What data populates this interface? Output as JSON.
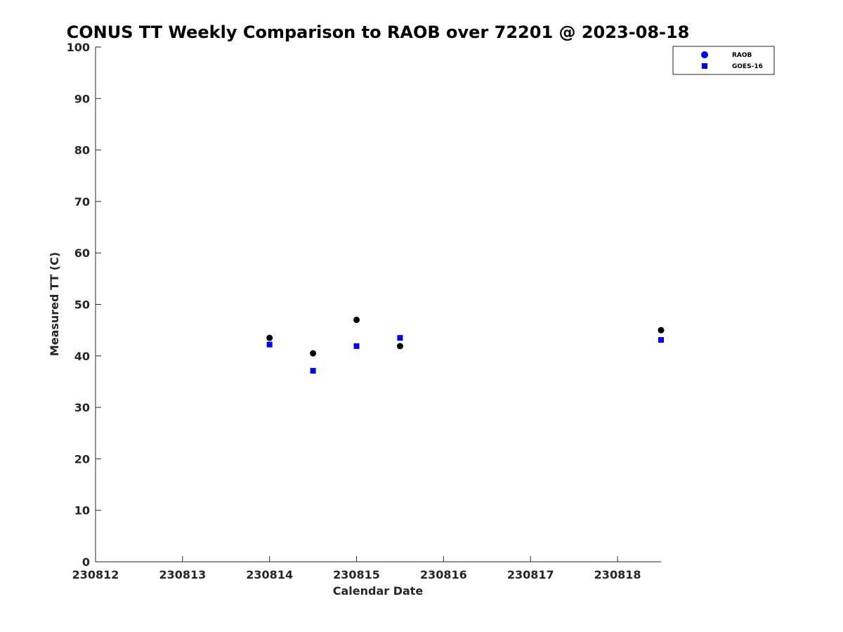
{
  "chart_data": {
    "type": "scatter",
    "title": "CONUS TT Weekly Comparison to RAOB over 72201 @ 2023-08-18",
    "xlabel": "Calendar Date",
    "ylabel": "Measured TT (C)",
    "xlim": [
      0,
      6.5
    ],
    "ylim": [
      0,
      100
    ],
    "x_ticks": [
      0,
      1,
      2,
      3,
      4,
      5,
      6
    ],
    "x_tick_labels": [
      "230812",
      "230813",
      "230814",
      "230815",
      "230816",
      "230817",
      "230818"
    ],
    "y_ticks": [
      0,
      10,
      20,
      30,
      40,
      50,
      60,
      70,
      80,
      90,
      100
    ],
    "y_tick_labels": [
      "0",
      "10",
      "20",
      "30",
      "40",
      "50",
      "60",
      "70",
      "80",
      "90",
      "100"
    ],
    "x_axis_note": "x values are days after 230812",
    "grid": false,
    "legend_position": "top-right",
    "series": [
      {
        "name": "RAOB",
        "marker": "circle",
        "legend_color": "#0000ff",
        "plot_color": "#000000",
        "x": [
          2.0,
          2.5,
          3.0,
          3.5,
          6.5
        ],
        "y": [
          43.5,
          40.5,
          47.0,
          41.9,
          45.0
        ]
      },
      {
        "name": "GOES-16",
        "marker": "square",
        "legend_color": "#0000ff",
        "plot_color": "#0000ff",
        "x": [
          2.0,
          2.5,
          3.0,
          3.5,
          6.5
        ],
        "y": [
          42.2,
          37.1,
          41.9,
          43.5,
          43.1
        ]
      }
    ]
  }
}
